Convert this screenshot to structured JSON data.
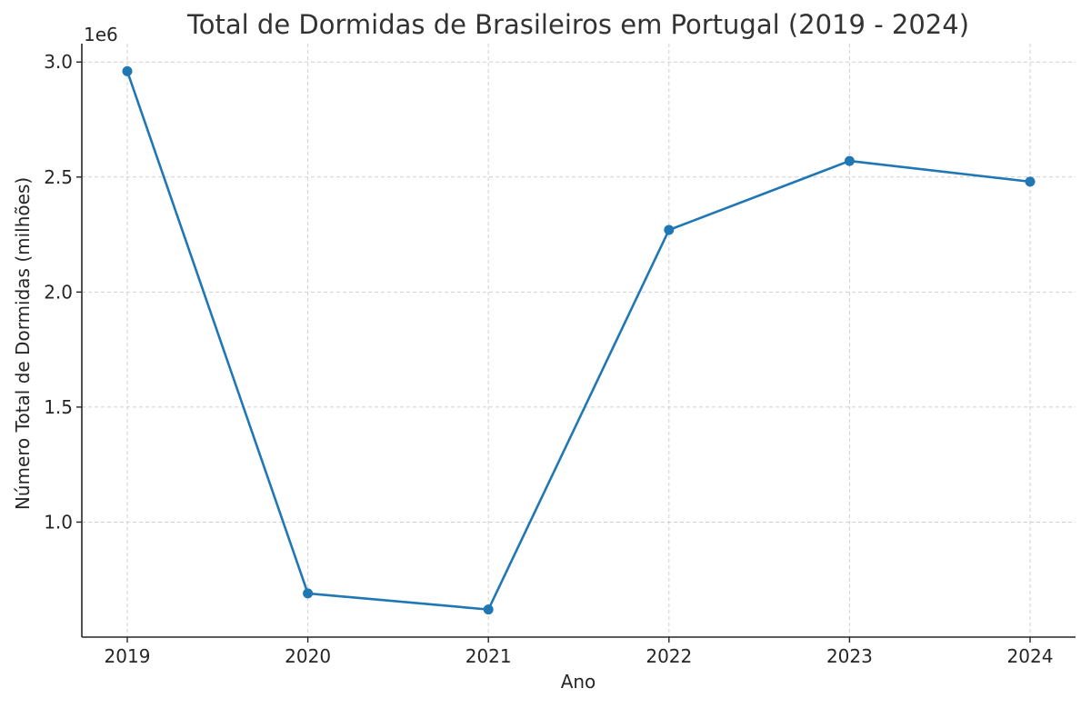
{
  "chart_data": {
    "type": "line",
    "title": "Total de Dormidas de Brasileiros em Portugal (2019 - 2024)",
    "xlabel": "Ano",
    "ylabel": "Número Total de Dormidas (milhões)",
    "y_offset_label": "1e6",
    "categories": [
      "2019",
      "2020",
      "2021",
      "2022",
      "2023",
      "2024"
    ],
    "series": [
      {
        "values": [
          2960000,
          690000,
          620000,
          2270000,
          2570000,
          2480000
        ],
        "color": "#1f77b4"
      }
    ],
    "ylim": [
      500000,
      3080000
    ],
    "y_ticks": [
      1000000,
      1500000,
      2000000,
      2500000,
      3000000
    ],
    "y_tick_labels": [
      "1.0",
      "1.5",
      "2.0",
      "2.5",
      "3.0"
    ],
    "grid": true,
    "grid_style": "dashed",
    "legend": "none",
    "marker": "circle"
  }
}
